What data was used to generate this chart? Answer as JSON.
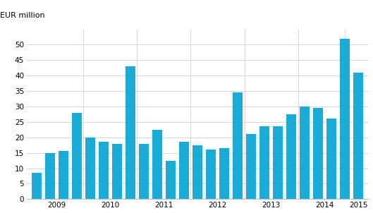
{
  "values": [
    8.5,
    15.0,
    15.5,
    28.0,
    20.0,
    18.5,
    18.0,
    43.0,
    18.0,
    22.5,
    12.5,
    18.5,
    17.5,
    16.0,
    16.5,
    34.5,
    21.0,
    23.5,
    23.5,
    27.5,
    30.0,
    29.5,
    26.0,
    52.0,
    41.0
  ],
  "bar_color": "#1aacd8",
  "ylabel": "EUR million",
  "ylim": [
    0,
    55
  ],
  "yticks": [
    0,
    5,
    10,
    15,
    20,
    25,
    30,
    35,
    40,
    45,
    50
  ],
  "year_labels": [
    "2009",
    "2010",
    "2011",
    "2012",
    "2013",
    "2014",
    "2015"
  ],
  "background_color": "#ffffff",
  "grid_color": "#d0d0d0",
  "spine_color": "#c0c0c0"
}
